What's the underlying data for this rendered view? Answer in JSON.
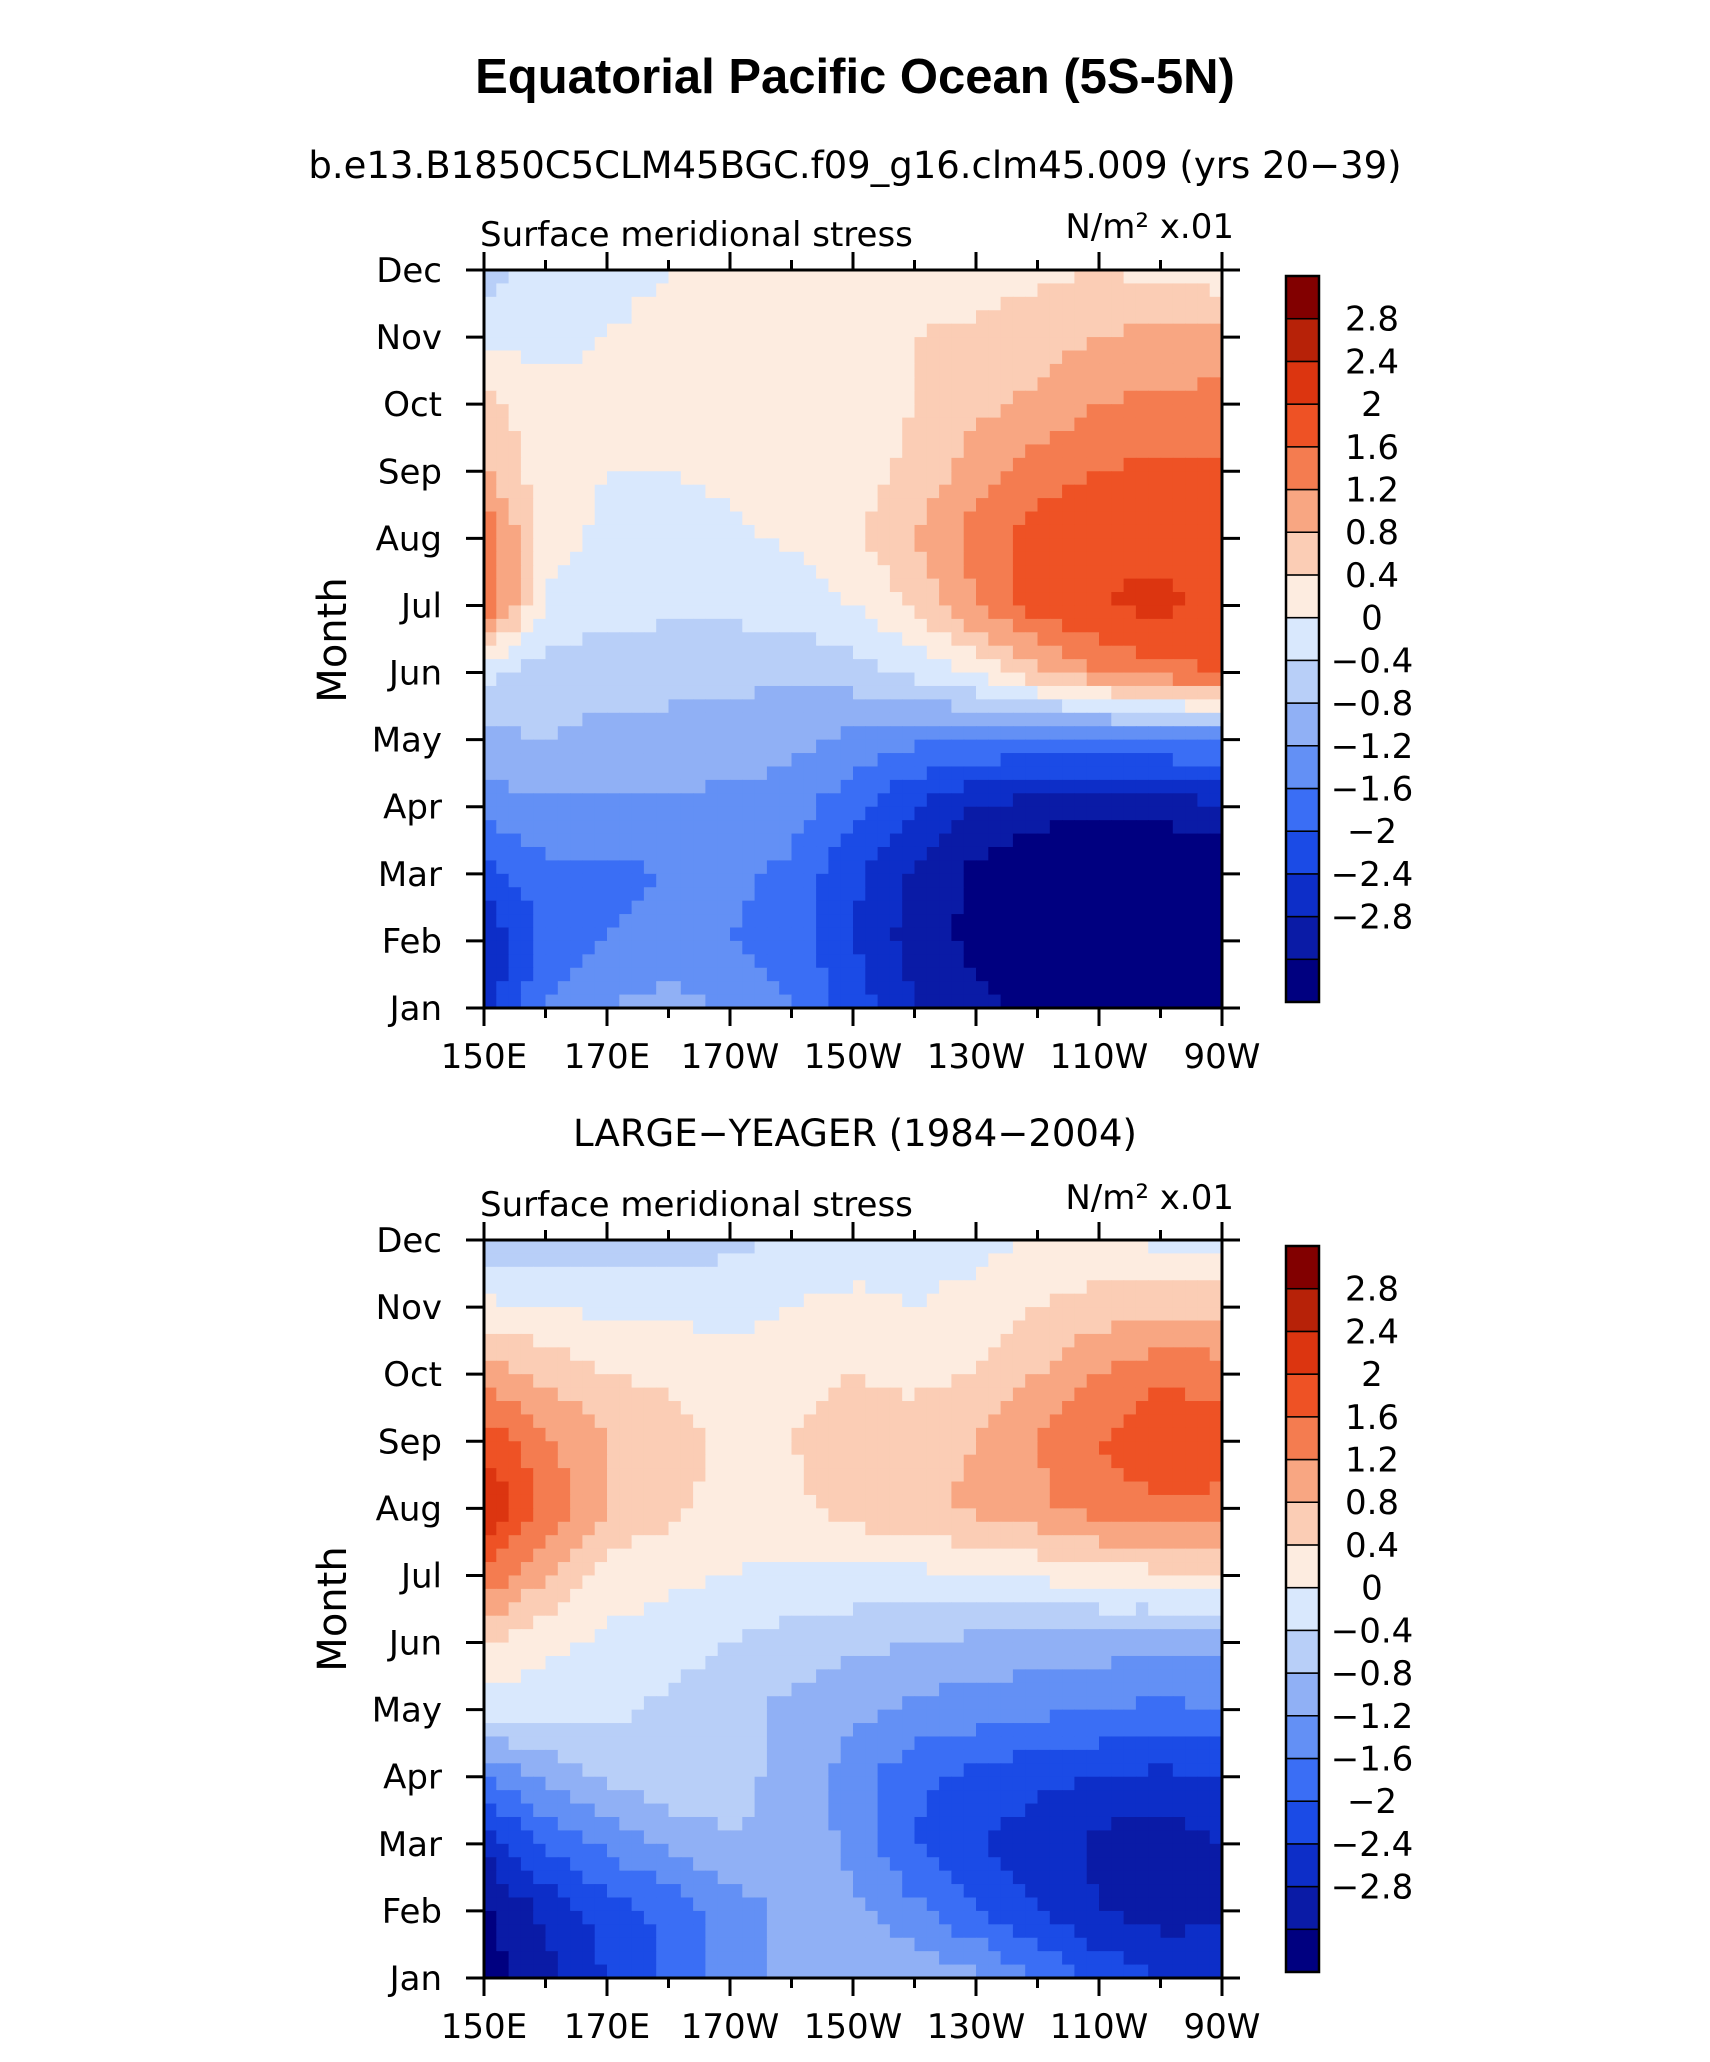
{
  "figure": {
    "title": "Equatorial Pacific Ocean (5S-5N)",
    "colorbar_labels": [
      "2.8",
      "2.4",
      "2",
      "1.6",
      "1.2",
      "0.8",
      "0.4",
      "0",
      "−0.4",
      "−0.8",
      "−1.2",
      "−1.6",
      "−2",
      "−2.4",
      "−2.8"
    ],
    "colors": [
      "#000080",
      "#0a1ba6",
      "#0d2ec8",
      "#1b4be6",
      "#3a6ef5",
      "#6390f5",
      "#90b0f5",
      "#b8cff8",
      "#d9e8fd",
      "#fdece0",
      "#fbcdb5",
      "#f8a682",
      "#f47c50",
      "#ee5225",
      "#dc3510",
      "#b72208",
      "#820000"
    ]
  },
  "chart_data": [
    {
      "type": "heatmap",
      "subtitle": "b.e13.B1850C5CLM45BGC.f09_g16.clm45.009 (yrs 20−39)",
      "left_label": "Surface meridional stress",
      "right_label": "N/m² x.01",
      "ylabel": "Month",
      "xticks": [
        "150E",
        "170E",
        "170W",
        "150W",
        "130W",
        "110W",
        "90W"
      ],
      "yticks": [
        "Jan",
        "Feb",
        "Mar",
        "Apr",
        "May",
        "Jun",
        "Jul",
        "Aug",
        "Sep",
        "Oct",
        "Nov",
        "Dec"
      ],
      "levels": [
        -2.8,
        -2.4,
        -2,
        -1.6,
        -1.2,
        -0.8,
        -0.4,
        0,
        0.4,
        0.8,
        1.2,
        1.6,
        2,
        2.4,
        2.8
      ],
      "lon": [
        150,
        160,
        170,
        180,
        190,
        200,
        210,
        220,
        230,
        240,
        250,
        260,
        270
      ],
      "values": [
        [
          -2.2,
          -1.2,
          -0.8,
          -0.6,
          -0.9,
          -1.2,
          -1.8,
          -2.4,
          -2.7,
          -2.9,
          -3.0,
          -3.0,
          -2.9
        ],
        [
          -2.4,
          -1.5,
          -1.2,
          -1.1,
          -1.2,
          -1.4,
          -2.0,
          -2.6,
          -2.9,
          -3.1,
          -3.2,
          -3.2,
          -3.1
        ],
        [
          -1.8,
          -1.3,
          -1.3,
          -1.2,
          -1.1,
          -1.3,
          -1.9,
          -2.5,
          -2.9,
          -3.2,
          -3.3,
          -3.3,
          -3.2
        ],
        [
          -1.0,
          -0.9,
          -0.9,
          -0.9,
          -0.9,
          -1.0,
          -1.5,
          -2.0,
          -2.4,
          -2.6,
          -2.7,
          -2.6,
          -2.5
        ],
        [
          -0.5,
          -0.4,
          -0.5,
          -0.5,
          -0.6,
          -0.7,
          -0.9,
          -1.1,
          -1.2,
          -1.3,
          -1.3,
          -1.2,
          -1.1
        ],
        [
          0.1,
          -0.2,
          -0.3,
          -0.3,
          -0.3,
          -0.3,
          -0.2,
          0.1,
          0.5,
          1.1,
          1.6,
          1.9,
          2.0
        ],
        [
          2.1,
          0.3,
          0.2,
          0.1,
          0.1,
          0.2,
          0.4,
          0.9,
          1.6,
          2.2,
          2.4,
          2.5,
          2.3
        ],
        [
          1.9,
          0.6,
          0.3,
          0.3,
          0.35,
          0.45,
          0.7,
          1.2,
          1.8,
          2.2,
          2.3,
          2.3,
          2.2
        ],
        [
          1.3,
          0.5,
          0.4,
          0.4,
          0.45,
          0.5,
          0.6,
          0.9,
          1.4,
          1.8,
          2.0,
          2.1,
          2.1
        ],
        [
          0.9,
          0.5,
          0.5,
          0.5,
          0.5,
          0.5,
          0.6,
          0.8,
          1.1,
          1.3,
          1.6,
          1.7,
          1.7
        ],
        [
          0.3,
          0.3,
          0.4,
          0.5,
          0.5,
          0.5,
          0.6,
          0.8,
          0.9,
          1.0,
          1.2,
          1.3,
          1.4
        ],
        [
          -0.2,
          0.2,
          0.3,
          0.4,
          0.5,
          0.5,
          0.5,
          0.5,
          0.6,
          0.7,
          0.8,
          0.7,
          0.5
        ]
      ]
    },
    {
      "type": "heatmap",
      "subtitle": "LARGE−YEAGER (1984−2004)",
      "left_label": "Surface meridional stress",
      "right_label": "N/m² x.01",
      "ylabel": "Month",
      "xticks": [
        "150E",
        "170E",
        "170W",
        "150W",
        "130W",
        "110W",
        "90W"
      ],
      "yticks": [
        "Jan",
        "Feb",
        "Mar",
        "Apr",
        "May",
        "Jun",
        "Jul",
        "Aug",
        "Sep",
        "Oct",
        "Nov",
        "Dec"
      ],
      "levels": [
        -2.8,
        -2.4,
        -2,
        -1.6,
        -1.2,
        -0.8,
        -0.4,
        0,
        0.4,
        0.8,
        1.2,
        1.6,
        2,
        2.4,
        2.8
      ],
      "lon": [
        150,
        160,
        170,
        180,
        190,
        200,
        210,
        220,
        230,
        240,
        250,
        260,
        270
      ],
      "values": [
        [
          -3.0,
          -2.6,
          -2.0,
          -1.5,
          -1.0,
          -0.6,
          -0.4,
          -0.5,
          -0.7,
          -1.2,
          -1.7,
          -2.0,
          -2.1
        ],
        [
          -2.9,
          -2.3,
          -1.8,
          -1.5,
          -1.0,
          -0.7,
          -0.7,
          -1.1,
          -1.6,
          -2.0,
          -2.4,
          -2.6,
          -2.5
        ],
        [
          -2.3,
          -1.5,
          -1.1,
          -0.7,
          -0.4,
          -0.5,
          -0.9,
          -1.6,
          -2.0,
          -2.2,
          -2.5,
          -2.7,
          -2.4
        ],
        [
          -1.2,
          -0.7,
          -0.3,
          -0.1,
          -0.3,
          -0.5,
          -1.0,
          -1.5,
          -1.7,
          -1.9,
          -2.0,
          -2.1,
          -2.0
        ],
        [
          0.2,
          0.2,
          0.1,
          -0.1,
          -0.3,
          -0.5,
          -0.7,
          -0.9,
          -1.0,
          -1.1,
          -1.2,
          -1.3,
          -1.2
        ],
        [
          0.8,
          0.5,
          0.3,
          0.2,
          0.0,
          -0.2,
          -0.3,
          -0.4,
          -0.5,
          -0.6,
          -0.6,
          -0.7,
          -0.7
        ],
        [
          2.0,
          1.2,
          0.6,
          0.5,
          0.4,
          0.3,
          0.3,
          0.3,
          0.4,
          0.5,
          0.6,
          0.7,
          0.7
        ],
        [
          2.8,
          1.9,
          1.2,
          0.9,
          0.6,
          0.7,
          1.0,
          1.1,
          1.3,
          1.5,
          1.8,
          1.9,
          1.9
        ],
        [
          2.3,
          1.7,
          1.2,
          1.0,
          0.7,
          0.8,
          1.0,
          1.0,
          1.2,
          1.6,
          2.0,
          2.4,
          2.2
        ],
        [
          1.4,
          1.1,
          0.8,
          0.7,
          0.5,
          0.6,
          0.8,
          0.7,
          0.8,
          1.2,
          1.6,
          1.9,
          1.8
        ],
        [
          0.5,
          0.4,
          0.3,
          0.3,
          0.3,
          0.4,
          0.5,
          0.4,
          0.5,
          0.8,
          1.0,
          1.1,
          1.1
        ],
        [
          -0.4,
          -0.3,
          -0.2,
          -0.2,
          -0.1,
          0.1,
          0.2,
          0.3,
          0.3,
          0.4,
          0.4,
          0.3,
          0.2
        ]
      ]
    }
  ]
}
